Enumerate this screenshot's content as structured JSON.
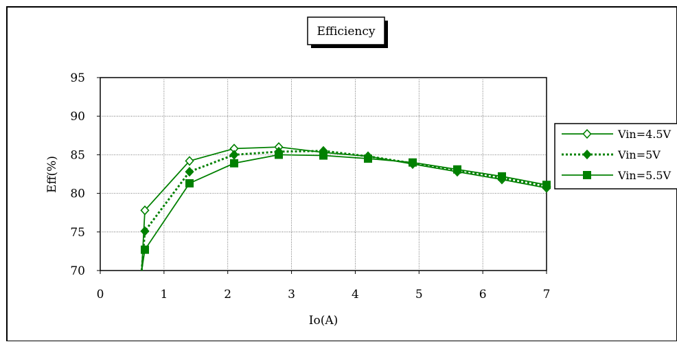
{
  "chart_data": {
    "type": "line",
    "title": "Efficiency",
    "xlabel": "Io(A)",
    "ylabel": "Eff(%)",
    "xlim": [
      0,
      7
    ],
    "ylim": [
      70,
      95
    ],
    "xticks": [
      0,
      1,
      2,
      3,
      4,
      5,
      6,
      7
    ],
    "yticks": [
      70,
      75,
      80,
      85,
      90,
      95
    ],
    "grid": true,
    "legend_position": "right",
    "series": [
      {
        "name": "Vin=4.5V",
        "marker": "diamond-open",
        "line": "solid",
        "color": "#008000",
        "x": [
          0.65,
          0.7,
          1.4,
          2.1,
          2.8,
          3.5,
          4.2,
          4.9,
          5.6,
          6.3,
          7.0
        ],
        "y": [
          70.0,
          77.8,
          84.2,
          85.8,
          86.0,
          85.3,
          84.8,
          83.8,
          82.8,
          81.8,
          80.7
        ]
      },
      {
        "name": "Vin=5V",
        "marker": "diamond-filled",
        "line": "dotted",
        "color": "#008000",
        "x": [
          0.65,
          0.7,
          1.4,
          2.1,
          2.8,
          3.5,
          4.2,
          4.9,
          5.6,
          6.3,
          7.0
        ],
        "y": [
          70.0,
          75.1,
          82.8,
          85.0,
          85.4,
          85.5,
          84.8,
          83.9,
          82.9,
          82.0,
          80.9
        ]
      },
      {
        "name": "Vin=5.5V",
        "marker": "square-filled",
        "line": "solid",
        "color": "#008000",
        "x": [
          0.65,
          0.7,
          1.4,
          2.1,
          2.8,
          3.5,
          4.2,
          4.9,
          5.6,
          6.3,
          7.0
        ],
        "y": [
          70.0,
          72.7,
          81.3,
          83.9,
          85.0,
          84.9,
          84.5,
          84.0,
          83.1,
          82.2,
          81.1
        ]
      }
    ]
  }
}
